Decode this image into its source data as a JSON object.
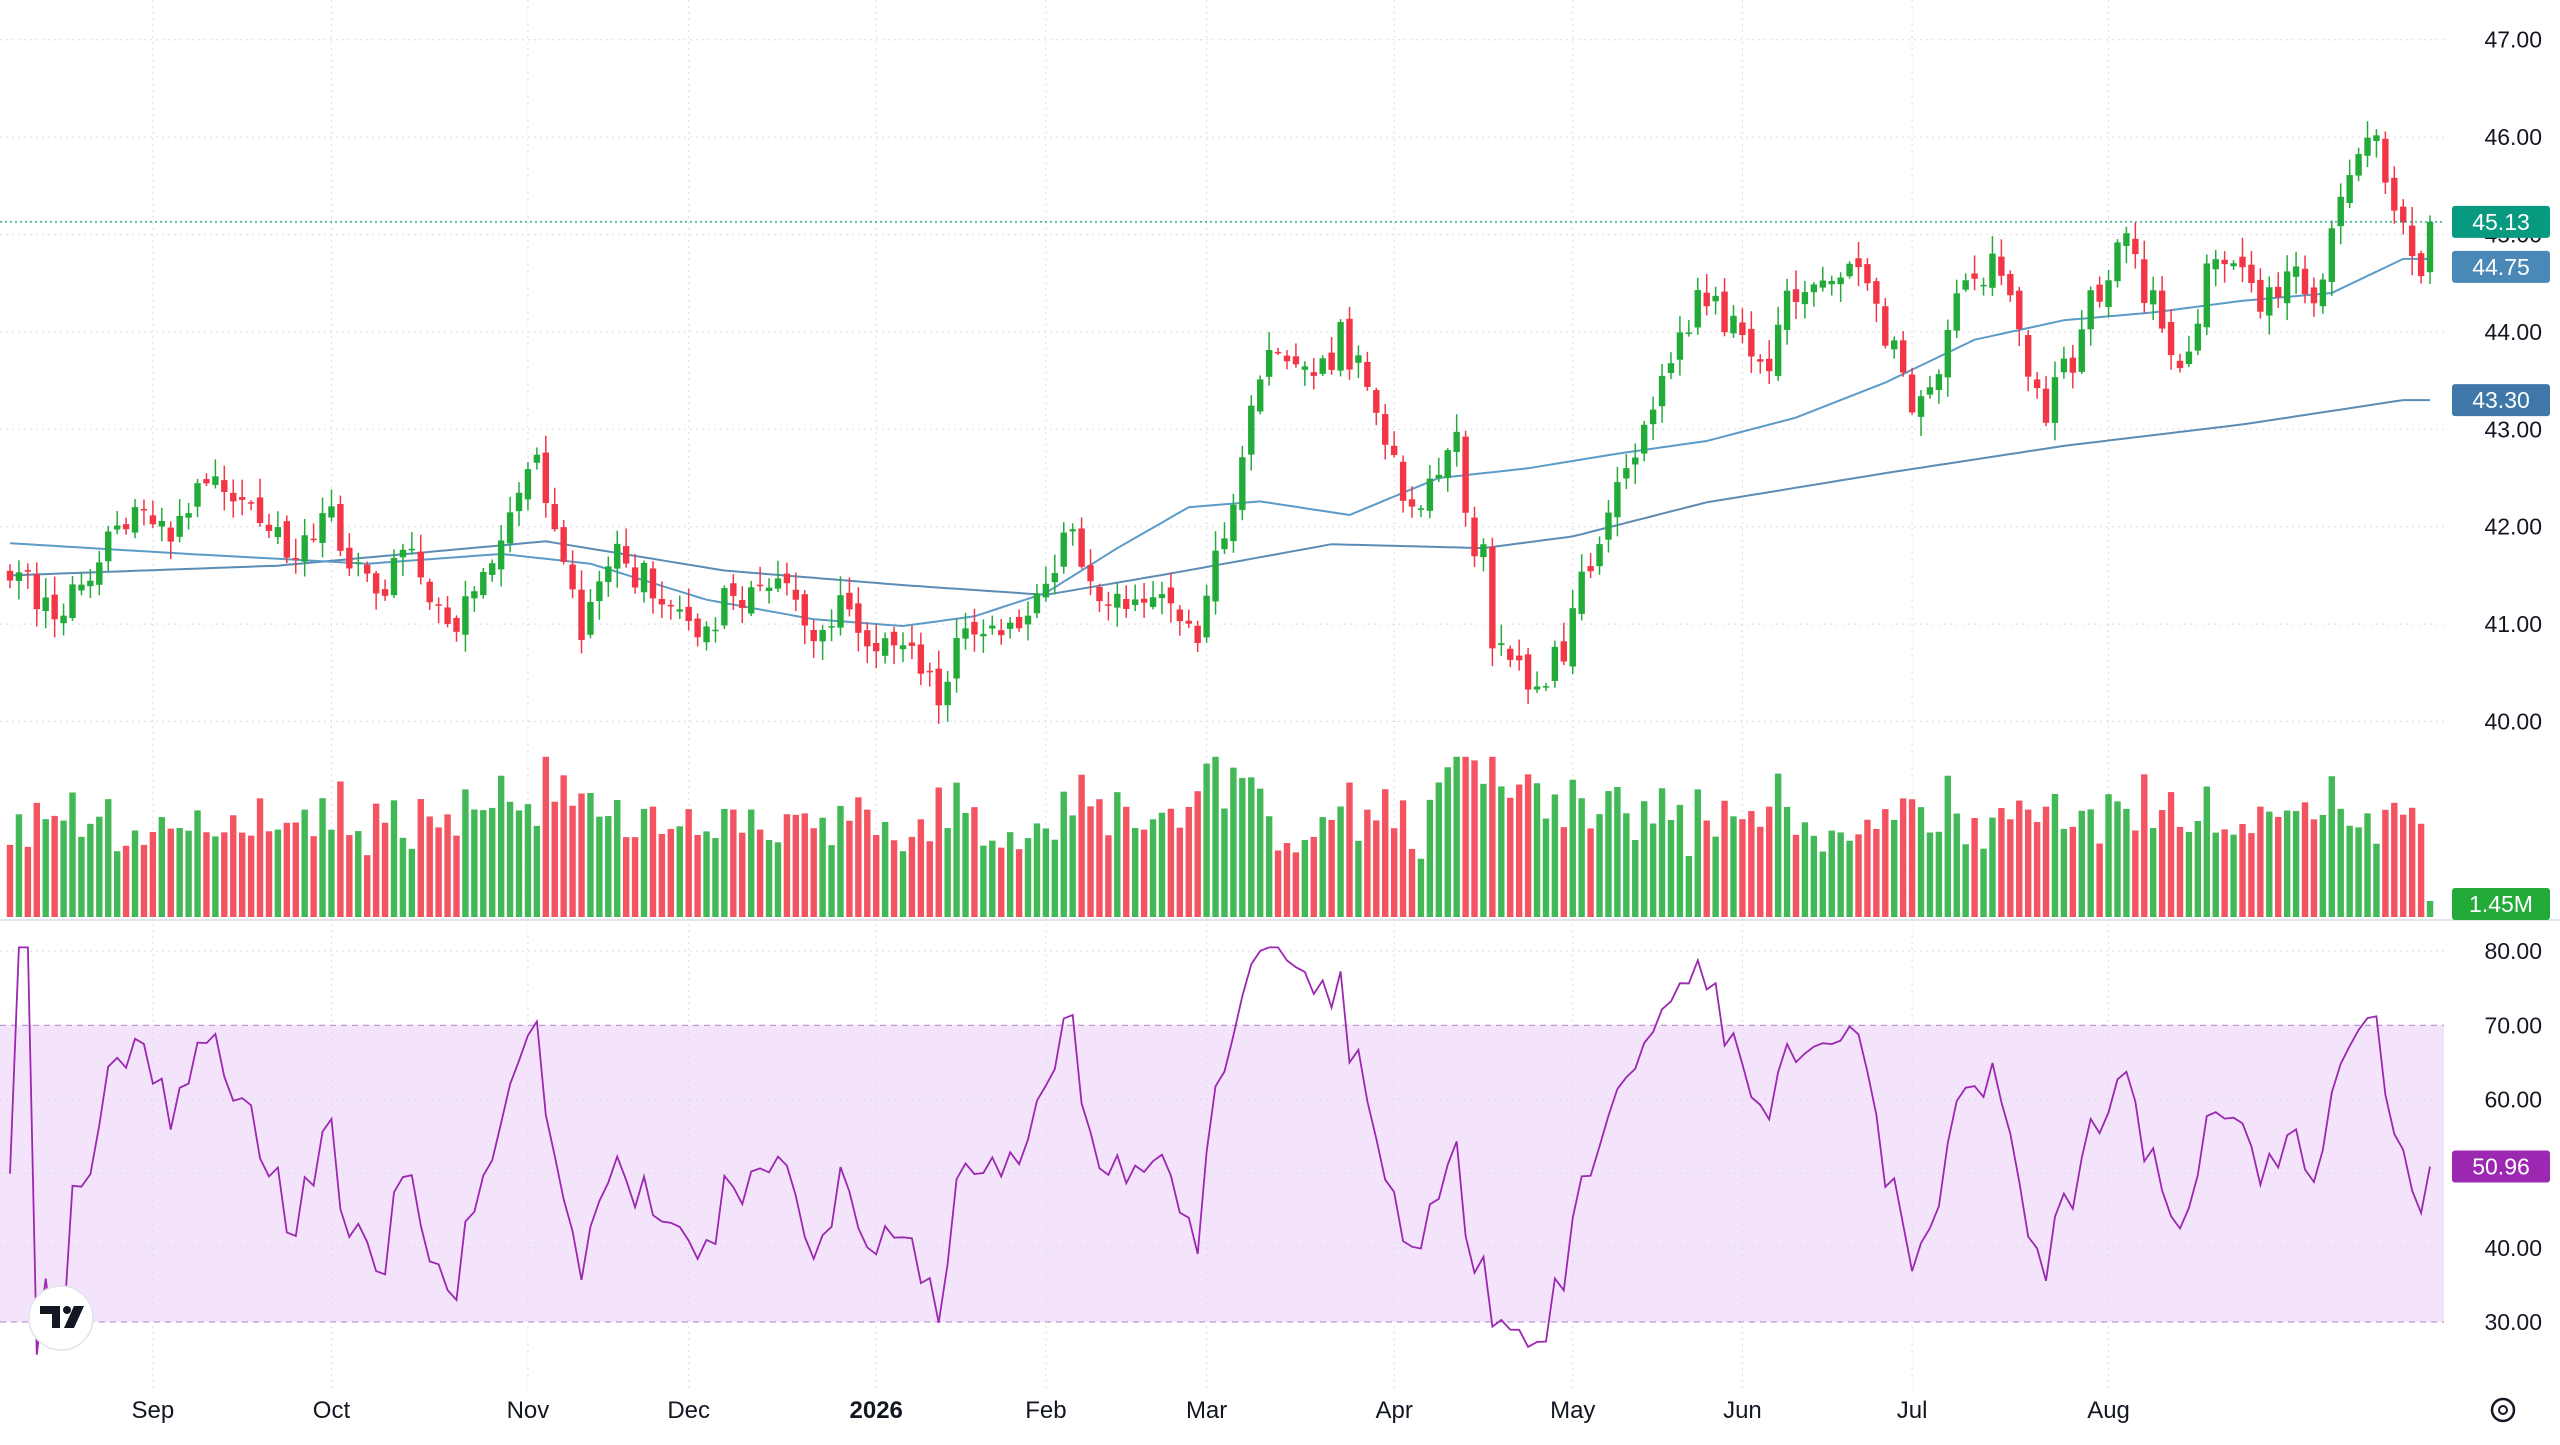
{
  "chart_data": {
    "type": "candlestick",
    "price_axis": {
      "ticks": [
        40,
        41,
        42,
        43,
        44,
        45,
        46,
        47
      ],
      "tick_labels": [
        "40.00",
        "41.00",
        "42.00",
        "43.00",
        "44.00",
        "45.00",
        "46.00",
        "47.00"
      ],
      "range": [
        39.05,
        47.1
      ]
    },
    "last_price": {
      "value": 45.13,
      "label": "45.13",
      "color": "#089981"
    },
    "ma_fast": {
      "last": 44.75,
      "label": "44.75",
      "color": "#5b9bc8",
      "anchors": [
        [
          0,
          41.83
        ],
        [
          20,
          41.72
        ],
        [
          40,
          41.62
        ],
        [
          55,
          41.72
        ],
        [
          65,
          41.62
        ],
        [
          78,
          41.25
        ],
        [
          90,
          41.05
        ],
        [
          100,
          40.98
        ],
        [
          108,
          41.08
        ],
        [
          116,
          41.32
        ],
        [
          124,
          41.78
        ],
        [
          132,
          42.2
        ],
        [
          140,
          42.26
        ],
        [
          150,
          42.12
        ],
        [
          160,
          42.5
        ],
        [
          170,
          42.6
        ],
        [
          180,
          42.75
        ],
        [
          190,
          42.88
        ],
        [
          200,
          43.12
        ],
        [
          210,
          43.48
        ],
        [
          220,
          43.92
        ],
        [
          230,
          44.12
        ],
        [
          240,
          44.2
        ],
        [
          250,
          44.32
        ],
        [
          260,
          44.4
        ],
        [
          268,
          44.75
        ]
      ]
    },
    "ma_slow": {
      "last": 43.3,
      "label": "43.30",
      "color": "#5b8cb5",
      "anchors": [
        [
          0,
          41.5
        ],
        [
          30,
          41.6
        ],
        [
          60,
          41.85
        ],
        [
          80,
          41.55
        ],
        [
          100,
          41.4
        ],
        [
          116,
          41.3
        ],
        [
          130,
          41.52
        ],
        [
          148,
          41.82
        ],
        [
          165,
          41.78
        ],
        [
          175,
          41.9
        ],
        [
          190,
          42.25
        ],
        [
          210,
          42.55
        ],
        [
          230,
          42.83
        ],
        [
          250,
          43.05
        ],
        [
          268,
          43.3
        ]
      ]
    },
    "price_path": [
      [
        0,
        41.5
      ],
      [
        6,
        41.1
      ],
      [
        10,
        41.6
      ],
      [
        13,
        42.15
      ],
      [
        18,
        41.85
      ],
      [
        22,
        42.4
      ],
      [
        26,
        42.25
      ],
      [
        32,
        41.7
      ],
      [
        36,
        42.05
      ],
      [
        41,
        41.3
      ],
      [
        45,
        41.75
      ],
      [
        50,
        40.9
      ],
      [
        55,
        41.95
      ],
      [
        59,
        42.75
      ],
      [
        61,
        41.95
      ],
      [
        64,
        40.95
      ],
      [
        68,
        41.7
      ],
      [
        72,
        41.35
      ],
      [
        76,
        40.85
      ],
      [
        80,
        41.2
      ],
      [
        86,
        41.45
      ],
      [
        90,
        40.85
      ],
      [
        93,
        41.15
      ],
      [
        98,
        40.72
      ],
      [
        101,
        40.6
      ],
      [
        104,
        40.35
      ],
      [
        108,
        41.05
      ],
      [
        112,
        40.95
      ],
      [
        116,
        41.3
      ],
      [
        118,
        42.1
      ],
      [
        121,
        41.5
      ],
      [
        125,
        41.2
      ],
      [
        129,
        41.45
      ],
      [
        133,
        40.95
      ],
      [
        136,
        41.9
      ],
      [
        140,
        43.55
      ],
      [
        142,
        43.95
      ],
      [
        146,
        43.45
      ],
      [
        149,
        43.95
      ],
      [
        151,
        43.65
      ],
      [
        154,
        42.9
      ],
      [
        157,
        42.15
      ],
      [
        160,
        42.5
      ],
      [
        162,
        42.8
      ],
      [
        164,
        41.85
      ],
      [
        165,
        41.7
      ],
      [
        166,
        40.6
      ],
      [
        168,
        40.8
      ],
      [
        171,
        40.25
      ],
      [
        174,
        40.75
      ],
      [
        176,
        41.55
      ],
      [
        178,
        41.85
      ],
      [
        181,
        42.55
      ],
      [
        184,
        43.15
      ],
      [
        187,
        43.9
      ],
      [
        190,
        44.45
      ],
      [
        193,
        44.0
      ],
      [
        196,
        43.55
      ],
      [
        199,
        44.25
      ],
      [
        202,
        44.65
      ],
      [
        205,
        44.4
      ],
      [
        207,
        44.7
      ],
      [
        210,
        44.0
      ],
      [
        213,
        43.35
      ],
      [
        216,
        43.75
      ],
      [
        219,
        44.5
      ],
      [
        222,
        44.7
      ],
      [
        225,
        43.95
      ],
      [
        228,
        43.25
      ],
      [
        231,
        43.75
      ],
      [
        234,
        44.5
      ],
      [
        237,
        44.85
      ],
      [
        240,
        44.25
      ],
      [
        243,
        43.7
      ],
      [
        246,
        44.55
      ],
      [
        249,
        44.85
      ],
      [
        252,
        44.25
      ],
      [
        255,
        44.65
      ],
      [
        258,
        44.3
      ],
      [
        261,
        45.4
      ],
      [
        264,
        46.1
      ],
      [
        266,
        45.7
      ],
      [
        268,
        45.1
      ],
      [
        270,
        44.75
      ],
      [
        271,
        45.1
      ]
    ],
    "rsi": {
      "ticks": [
        30,
        40,
        50,
        60,
        70,
        80
      ],
      "tick_labels": [
        "30.00",
        "40.00",
        "50.00",
        "60.00",
        "70.00",
        "80.00"
      ],
      "range": [
        24.6,
        81.5
      ],
      "band": [
        30,
        70
      ],
      "last": 50.96,
      "label": "50.96",
      "color": "#9c27b0"
    },
    "volume": {
      "last_label": "1.45M",
      "last_color": "#22ab39"
    },
    "x_axis": {
      "labels": [
        "Sep",
        "Oct",
        "Nov",
        "Dec",
        "2026",
        "Feb",
        "Mar",
        "Apr",
        "May",
        "Jun",
        "Jul",
        "Aug"
      ],
      "bar_index": [
        16,
        36,
        58,
        76,
        97,
        116,
        134,
        155,
        175,
        194,
        213,
        235
      ],
      "bold": [
        false,
        false,
        false,
        false,
        true,
        false,
        false,
        false,
        false,
        false,
        false,
        false
      ]
    },
    "bar_count": 272,
    "colors": {
      "up": "#22ab39",
      "down": "#f23645",
      "rsi_band": "#f3e4fc",
      "grid": "#d8dde3",
      "axis_text": "#131722"
    }
  }
}
